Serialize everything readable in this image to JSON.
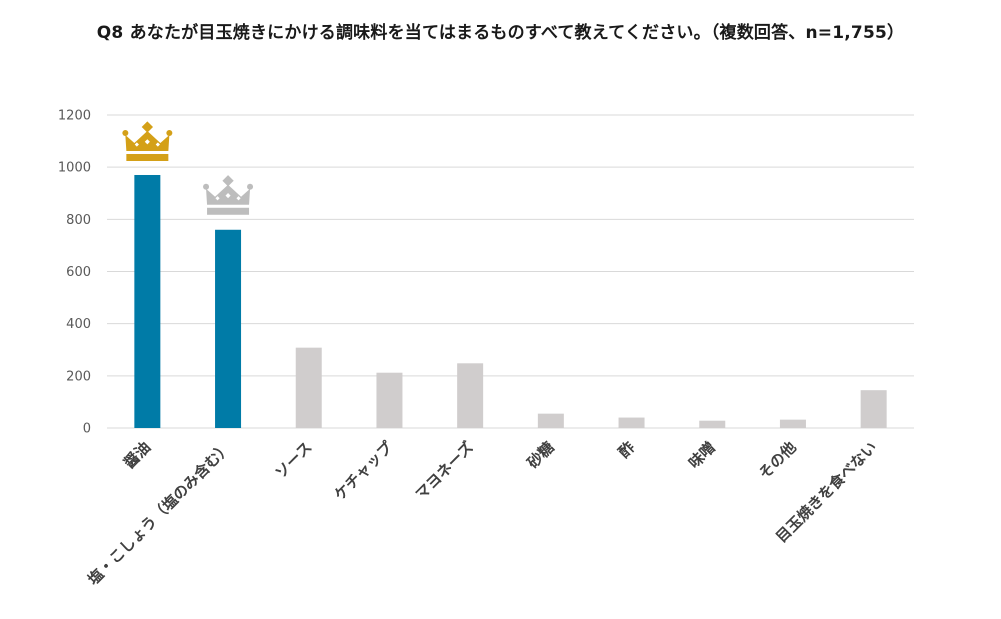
{
  "colors": {
    "highlight_bar": "#007ba7",
    "normal_bar": "#d0cdcd",
    "gold_crown": "#d4a017",
    "silver_crown": "#bdbdbd",
    "grid": "#d9d9d9"
  },
  "icons": {
    "first": "gold-crown-icon",
    "second": "silver-crown-icon"
  },
  "chart_data": {
    "type": "bar",
    "title": "Q8 あなたが目玉焼きにかける調味料を当てはまるものすべて教えてください。（複数回答、n=1,755）",
    "xlabel": "",
    "ylabel": "",
    "ylim": [
      0,
      1200
    ],
    "yticks": [
      0,
      200,
      400,
      600,
      800,
      1000,
      1200
    ],
    "grid": true,
    "legend": "none",
    "categories": [
      "醤油",
      "塩・こしょう（塩のみ含む）",
      "ソース",
      "ケチャップ",
      "マヨネーズ",
      "砂糖",
      "酢",
      "味噌",
      "その他",
      "目玉焼きを食べない"
    ],
    "values": [
      970,
      760,
      308,
      212,
      248,
      55,
      40,
      28,
      32,
      145
    ],
    "highlighted": [
      true,
      true,
      false,
      false,
      false,
      false,
      false,
      false,
      false,
      false
    ]
  }
}
